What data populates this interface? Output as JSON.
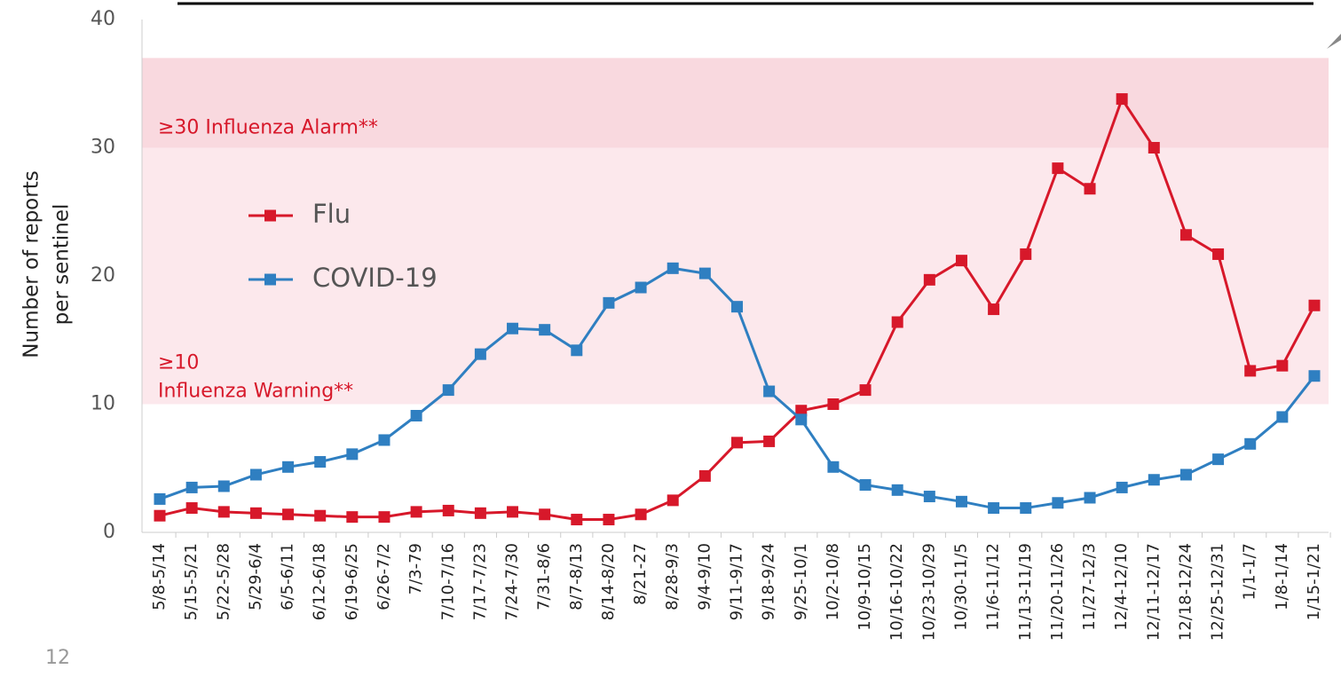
{
  "chart_data": {
    "type": "line",
    "y_label": [
      "Number of reports",
      "per sentinel"
    ],
    "page_number": "12",
    "categories": [
      "5/8-5/14",
      "5/15-5/21",
      "5/22-5/28",
      "5/29-6/4",
      "6/5-6/11",
      "6/12-6/18",
      "6/19-6/25",
      "6/26-7/2",
      "7/3-79",
      "7/10-7/16",
      "7/17-7/23",
      "7/24-7/30",
      "7/31-8/6",
      "8/7-8/13",
      "8/14-8/20",
      "8/21-27",
      "8/28-9/3",
      "9/4-9/10",
      "9/11-9/17",
      "9/18-9/24",
      "9/25-10/1",
      "10/2-10/8",
      "10/9-10/15",
      "10/16-10/22",
      "10/23-10/29",
      "10/30-11/5",
      "11/6-11/12",
      "11/13-11/19",
      "11/20-11/26",
      "11/27-12/3",
      "12/4-12/10",
      "12/11-12/17",
      "12/18-12/24",
      "12/25-12/31",
      "1/1-1/7",
      "1/8-1/14",
      "1/15-1/21"
    ],
    "series": [
      {
        "name": "Flu",
        "color": "#d7182a",
        "values": [
          1.3,
          1.9,
          1.6,
          1.5,
          1.4,
          1.3,
          1.2,
          1.2,
          1.6,
          1.7,
          1.5,
          1.6,
          1.4,
          1.0,
          1.0,
          1.4,
          2.5,
          4.4,
          7.0,
          7.1,
          9.5,
          10.0,
          11.1,
          16.4,
          19.7,
          21.2,
          17.4,
          21.7,
          28.4,
          26.8,
          33.8,
          30.0,
          23.2,
          21.7,
          12.6,
          13.0,
          17.7
        ]
      },
      {
        "name": "COVID-19",
        "color": "#2f7fc1",
        "values": [
          2.6,
          3.5,
          3.6,
          4.5,
          5.1,
          5.5,
          6.1,
          7.2,
          9.1,
          11.1,
          13.9,
          15.9,
          15.8,
          14.2,
          17.9,
          19.1,
          20.6,
          20.2,
          17.6,
          11.0,
          8.8,
          5.1,
          3.7,
          3.3,
          2.8,
          2.4,
          1.9,
          1.9,
          2.3,
          2.7,
          3.5,
          4.1,
          4.5,
          5.7,
          6.9,
          9.0,
          12.2
        ]
      }
    ],
    "bands": [
      {
        "from": 10,
        "to": 30,
        "color": "#fce8ec",
        "label": [
          "≥10",
          "Influenza Warning**"
        ]
      },
      {
        "from": 30,
        "to": 37,
        "color": "#f9d9df",
        "label": [
          "≥30 Influenza Alarm**"
        ]
      }
    ],
    "ylim": [
      0,
      40
    ],
    "yticks": [
      0,
      10,
      20,
      30,
      40
    ],
    "legend": "upper left"
  }
}
